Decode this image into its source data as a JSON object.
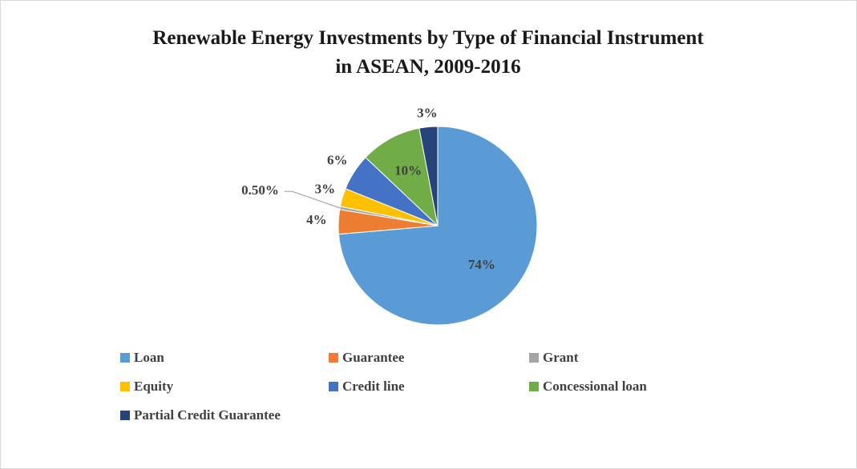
{
  "chart_data": {
    "type": "pie",
    "title": "Renewable Energy Investments by Type of Financial Instrument in ASEAN, 2009-2016",
    "categories": [
      "Loan",
      "Guarantee",
      "Grant",
      "Equity",
      "Credit line",
      "Concessional loan",
      "Partial Credit Guarantee"
    ],
    "values": [
      74,
      4,
      0.5,
      3,
      6,
      10,
      3
    ],
    "value_labels": [
      "74%",
      "4%",
      "0.50%",
      "3%",
      "6%",
      "10%",
      "3%"
    ],
    "colors": [
      "#5b9bd5",
      "#ed7d31",
      "#a5a5a5",
      "#ffc000",
      "#4472c4",
      "#70ad47",
      "#264478"
    ],
    "legend": "bottom"
  }
}
